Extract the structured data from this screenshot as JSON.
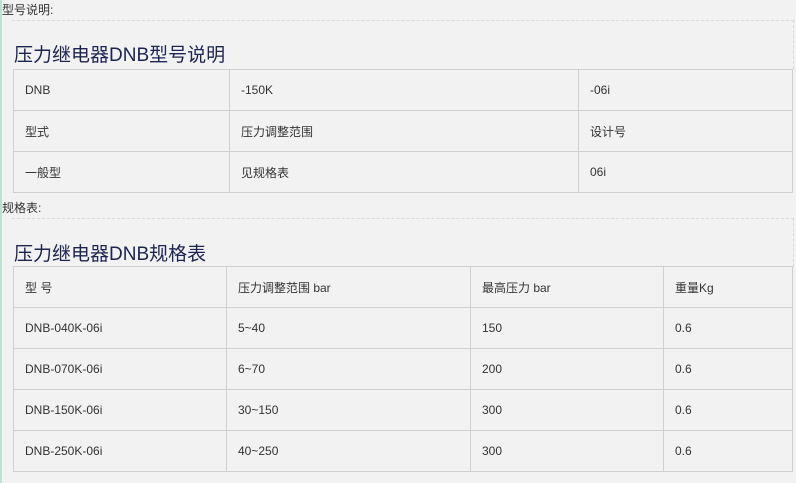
{
  "section1": {
    "label": "型号说明:",
    "title": "压力继电器DNB型号说明",
    "rows": [
      [
        "DNB",
        "-150K",
        "-06i"
      ],
      [
        "型式",
        "压力调整范围",
        "设计号"
      ],
      [
        "一般型",
        "见规格表",
        "06i"
      ]
    ]
  },
  "section2": {
    "label": "规格表:",
    "title": "压力继电器DNB规格表",
    "header": [
      "型 号",
      "压力调整范围 bar",
      "最高压力 bar",
      "重量Kg"
    ],
    "rows": [
      [
        "DNB-040K-06i",
        "5~40",
        "150",
        "0.6"
      ],
      [
        "DNB-070K-06i",
        "6~70",
        "200",
        "0.6"
      ],
      [
        "DNB-150K-06i",
        "30~150",
        "300",
        "0.6"
      ],
      [
        "DNB-250K-06i",
        "40~250",
        "300",
        "0.6"
      ]
    ]
  }
}
